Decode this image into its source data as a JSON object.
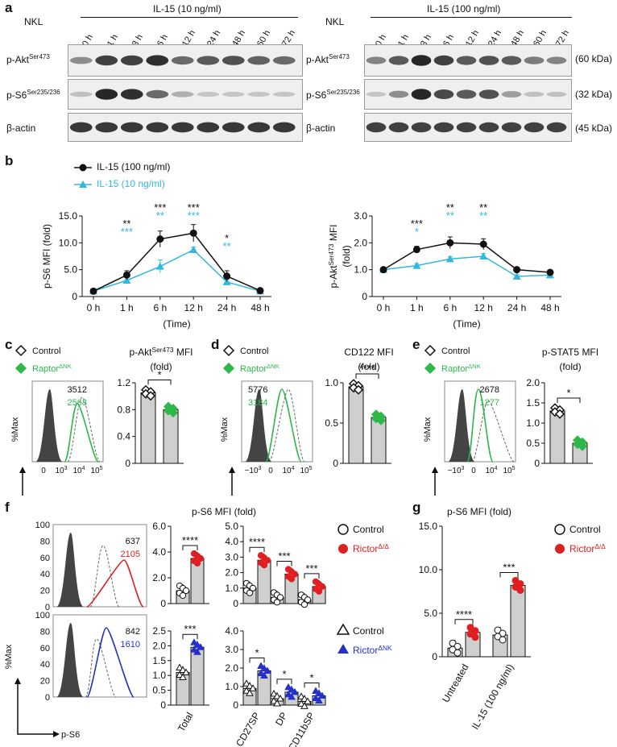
{
  "panels": {
    "a": "a",
    "b": "b",
    "c": "c",
    "d": "d",
    "e": "e",
    "f": "f",
    "g": "g"
  },
  "a": {
    "left": {
      "cell": "NKL",
      "title": "IL-15 (10 ng/ml)",
      "times": [
        "0 h",
        "1 h",
        "3 h",
        "6 h",
        "12 h",
        "24 h",
        "48 h",
        "60 h",
        "72 h"
      ],
      "rows": [
        "p-Akt",
        "p-S6",
        "β-actin"
      ],
      "row_sup": [
        "Ser473",
        "Ser235/236",
        ""
      ],
      "bands": [
        [
          0.35,
          0.8,
          0.8,
          0.9,
          0.55,
          0.65,
          0.7,
          0.6,
          0.55
        ],
        [
          0.05,
          0.95,
          0.9,
          0.55,
          0.15,
          0.02,
          0.02,
          0.02,
          0.02
        ],
        [
          0.85,
          0.85,
          0.85,
          0.85,
          0.85,
          0.85,
          0.85,
          0.85,
          0.85
        ]
      ]
    },
    "right": {
      "cell": "NKL",
      "title": "IL-15 (100 ng/ml)",
      "times": [
        "0 h",
        "1 h",
        "3 h",
        "6 h",
        "12 h",
        "24 h",
        "48 h",
        "60 h",
        "72 h"
      ],
      "rows": [
        "p-Akt",
        "p-S6",
        "β-actin"
      ],
      "row_sup": [
        "Ser473",
        "Ser235/236",
        ""
      ],
      "kda": [
        "(60 kDa)",
        "(32 kDa)",
        "(45 kDa)"
      ],
      "bands": [
        [
          0.4,
          0.65,
          0.95,
          0.8,
          0.65,
          0.7,
          0.65,
          0.45,
          0.4
        ],
        [
          0.02,
          0.35,
          0.95,
          0.75,
          0.65,
          0.7,
          0.25,
          0.05,
          0.05
        ],
        [
          0.8,
          0.8,
          0.8,
          0.8,
          0.8,
          0.8,
          0.8,
          0.8,
          0.8
        ]
      ]
    }
  },
  "b": {
    "legend": [
      {
        "name": "IL-15 (100 ng/ml)",
        "color": "#111111"
      },
      {
        "name": "IL-15 (10 ng/ml)",
        "color": "#33b8dd"
      }
    ],
    "xlabel": "(Time)",
    "left": {
      "ylabel": "p-S6 MFI (fold)",
      "ytick": [
        "0",
        "5.0",
        "10.0",
        "15.0"
      ],
      "xtick": [
        "0 h",
        "1 h",
        "6 h",
        "12 h",
        "24 h",
        "48 h"
      ],
      "sig_black": [
        "",
        "**",
        "***",
        "***",
        "*",
        ""
      ],
      "sig_blue": [
        "",
        "***",
        "**",
        "***",
        "**",
        ""
      ]
    },
    "right": {
      "ylabel": "p-Akt",
      "ylabel_sup": "Ser473",
      "ylabel_tail": " MFI",
      "ylabel2": "(fold)",
      "ytick": [
        "0",
        "1.0",
        "2.0",
        "3.0"
      ],
      "xtick": [
        "0 h",
        "1 h",
        "6 h",
        "12 h",
        "24 h",
        "48 h"
      ],
      "sig_black": [
        "",
        "***",
        "**",
        "**",
        "",
        ""
      ],
      "sig_blue": [
        "",
        "*",
        "**",
        "**",
        "",
        ""
      ]
    }
  },
  "chart_data": [
    {
      "type": "line",
      "title": "",
      "xlabel": "(Time)",
      "ylabel": "p-S6 MFI (fold)",
      "x": [
        "0 h",
        "1 h",
        "6 h",
        "12 h",
        "24 h",
        "48 h"
      ],
      "ylim": [
        0,
        15
      ],
      "series": [
        {
          "name": "IL-15 (100 ng/ml)",
          "values": [
            1.0,
            4.0,
            10.7,
            11.8,
            3.8,
            1.1
          ]
        },
        {
          "name": "IL-15 (10 ng/ml)",
          "values": [
            1.0,
            3.0,
            5.6,
            8.7,
            2.7,
            1.0
          ]
        }
      ]
    },
    {
      "type": "line",
      "title": "",
      "xlabel": "(Time)",
      "ylabel": "p-AktSer473 MFI (fold)",
      "x": [
        "0 h",
        "1 h",
        "6 h",
        "12 h",
        "24 h",
        "48 h"
      ],
      "ylim": [
        0,
        3
      ],
      "series": [
        {
          "name": "IL-15 (100 ng/ml)",
          "values": [
            1.0,
            1.75,
            2.0,
            1.95,
            1.0,
            0.9
          ]
        },
        {
          "name": "IL-15 (10 ng/ml)",
          "values": [
            1.0,
            1.15,
            1.4,
            1.5,
            0.75,
            0.8
          ]
        }
      ]
    },
    {
      "type": "bar",
      "title": "p-AktSer473 MFI (fold)",
      "categories": [
        "Control",
        "RaptorΔNK"
      ],
      "values": [
        1.05,
        0.8
      ],
      "ylim": [
        0,
        1.2
      ]
    },
    {
      "type": "bar",
      "title": "CD122 MFI (fold)",
      "categories": [
        "Control",
        "RaptorΔNK"
      ],
      "values": [
        0.95,
        0.57
      ],
      "ylim": [
        0,
        1.0
      ]
    },
    {
      "type": "bar",
      "title": "p-STAT5 MFI (fold)",
      "categories": [
        "Control",
        "RaptorΔNK"
      ],
      "values": [
        1.3,
        0.5
      ],
      "ylim": [
        0,
        2.0
      ]
    },
    {
      "type": "bar",
      "title": "p-S6 MFI (fold)",
      "categories": [
        "Control",
        "RictorΔ/Δ"
      ],
      "values": [
        1.0,
        3.5
      ],
      "ylim": [
        0,
        6.0
      ]
    },
    {
      "type": "bar",
      "title": "p-S6 MFI (fold)",
      "categories": [
        "CD27SP",
        "DP",
        "CD11bSP"
      ],
      "series": [
        {
          "name": "Control",
          "values": [
            1.0,
            0.4,
            0.25
          ]
        },
        {
          "name": "RictorΔ/Δ",
          "values": [
            2.8,
            1.9,
            1.1
          ]
        }
      ],
      "ylim": [
        0,
        5.0
      ]
    },
    {
      "type": "bar",
      "title": "p-S6 MFI (fold)",
      "categories": [
        "Total"
      ],
      "series": [
        {
          "name": "Control",
          "values": [
            1.1
          ]
        },
        {
          "name": "RictorΔNK",
          "values": [
            1.95
          ]
        }
      ],
      "ylim": [
        0,
        2.5
      ]
    },
    {
      "type": "bar",
      "title": "p-S6 MFI (fold)",
      "categories": [
        "CD27SP",
        "DP",
        "CD11bSP"
      ],
      "series": [
        {
          "name": "Control",
          "values": [
            0.9,
            0.35,
            0.2
          ]
        },
        {
          "name": "RictorΔNK",
          "values": [
            1.85,
            0.7,
            0.5
          ]
        }
      ],
      "ylim": [
        0,
        4.0
      ]
    },
    {
      "type": "bar",
      "title": "p-S6 MFI (fold)",
      "categories": [
        "Untreated",
        "IL-15 (100 ng/ml)"
      ],
      "series": [
        {
          "name": "Control",
          "values": [
            1.0,
            2.5
          ]
        },
        {
          "name": "RictorΔ/Δ",
          "values": [
            2.8,
            8.2
          ]
        }
      ],
      "ylim": [
        0,
        15
      ]
    }
  ],
  "c": {
    "legend_control": "Control",
    "legend_mut": "Raptor",
    "legend_mut_sup": "ΔNK",
    "num1": "3512",
    "num2": "2568",
    "xaxis": "p-Akt",
    "xaxis_sup": "Ser473",
    "bar_title": "p-Akt",
    "bar_title_sup": "Ser473",
    "bar_title_tail": " MFI",
    "bar_title2": "(fold)",
    "ytick": [
      "0",
      "0.4",
      "0.8",
      "1.2"
    ],
    "sig": "*"
  },
  "d": {
    "legend_control": "Control",
    "legend_mut": "Raptor",
    "legend_mut_sup": "ΔNK",
    "num1": "5776",
    "num2": "3184",
    "xaxis": "CD122",
    "bar_title": "CD122 MFI",
    "bar_title2": "(fold)",
    "ytick": [
      "0",
      "0.5",
      "1.0"
    ],
    "sig": "****"
  },
  "e": {
    "legend_control": "Control",
    "legend_mut": "Raptor",
    "legend_mut_sup": "ΔNK",
    "num1": "2678",
    "num2": "1277",
    "xaxis": "p-STAT5",
    "bar_title": "p-STAT5 MFI",
    "bar_title2": "(fold)",
    "ytick": [
      "0",
      "0.5",
      "1.0",
      "1.5",
      "2.0"
    ],
    "sig": "*"
  },
  "hist_axis": {
    "ylabel": "%Max",
    "xticks_a": [
      "0",
      "10",
      "10",
      "10"
    ],
    "xticks_b": [
      "−10",
      "0",
      "10",
      "10"
    ]
  },
  "f": {
    "title": "p-S6 MFI (fold)",
    "hist_top": {
      "n1": "637",
      "n2": "2105",
      "ytick": [
        "0",
        "20",
        "40",
        "60",
        "80",
        "100"
      ]
    },
    "hist_bottom": {
      "n1": "842",
      "n2": "1610",
      "ytick": [
        "0",
        "20",
        "40",
        "60",
        "80",
        "100"
      ]
    },
    "xaxis": "p-S6",
    "ylabel": "%Max",
    "legend_top": {
      "control": "Control",
      "mut": "Rictor",
      "mut_sup": "Δ/Δ"
    },
    "legend_bottom": {
      "control": "Control",
      "mut": "Rictor",
      "mut_sup": "ΔNK"
    },
    "total_top": {
      "ytick": [
        "0",
        "2.0",
        "4.0",
        "6.0"
      ],
      "sig": "****"
    },
    "sub_top": {
      "ytick": [
        "0",
        "1.0",
        "2.0",
        "3.0",
        "4.0",
        "5.0"
      ],
      "sig": [
        "****",
        "***",
        "***"
      ]
    },
    "total_bottom": {
      "ytick": [
        "0",
        "0.5",
        "1.0",
        "1.5",
        "2.0",
        "2.5"
      ],
      "sig": "***"
    },
    "sub_bottom": {
      "ytick": [
        "0",
        "1.0",
        "2.0",
        "3.0",
        "4.0"
      ],
      "sig": [
        "*",
        "*",
        "*"
      ]
    },
    "xcat_total": "Total",
    "xcat_sub": [
      "CD27SP",
      "DP",
      "CD11bSP"
    ]
  },
  "g": {
    "title": "p-S6 MFI (fold)",
    "ytick": [
      "0",
      "5.0",
      "10.0",
      "15.0"
    ],
    "sig": [
      "****",
      "***"
    ],
    "xcat": [
      "Untreated",
      "IL-15 (100 ng/ml)"
    ],
    "legend": {
      "control": "Control",
      "mut": "Rictor",
      "mut_sup": "Δ/Δ"
    }
  },
  "colors": {
    "black": "#111111",
    "cyan": "#33b8dd",
    "green": "#2eb84a",
    "red": "#e02020",
    "blue": "#2430c8",
    "gray": "#c8c8c8",
    "dark": "#444444"
  }
}
